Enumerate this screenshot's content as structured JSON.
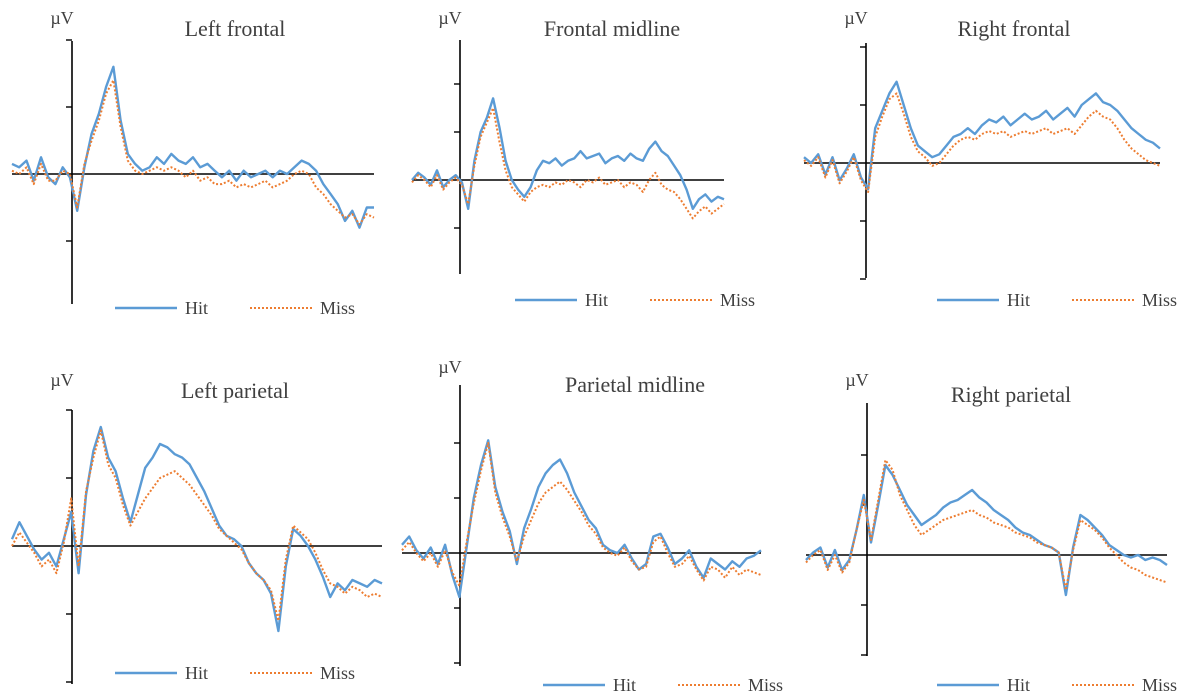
{
  "chart_data": [
    {
      "type": "line",
      "title": "Left frontal",
      "ylabel": "µV",
      "ylim": [
        -4,
        4
      ],
      "series": [
        {
          "name": "Hit",
          "color": "#5b9bd5",
          "style": "solid",
          "values": [
            0.3,
            0.2,
            0.4,
            -0.2,
            0.5,
            -0.1,
            -0.3,
            0.2,
            -0.1,
            -1.1,
            0.2,
            1.2,
            1.8,
            2.6,
            3.2,
            1.6,
            0.6,
            0.3,
            0.1,
            0.2,
            0.5,
            0.3,
            0.6,
            0.4,
            0.3,
            0.5,
            0.2,
            0.3,
            0.1,
            -0.1,
            0.1,
            -0.2,
            0.1,
            -0.1,
            0.0,
            0.1,
            -0.1,
            0.1,
            0.0,
            0.2,
            0.4,
            0.3,
            0.1,
            -0.3,
            -0.6,
            -0.9,
            -1.4,
            -1.1,
            -1.6,
            -1.0,
            -1.0
          ]
        },
        {
          "name": "Miss",
          "color": "#ed7d31",
          "style": "dotted",
          "values": [
            0.1,
            0.0,
            0.2,
            -0.3,
            0.3,
            -0.2,
            -0.2,
            0.1,
            0.0,
            -1.0,
            0.3,
            1.0,
            1.6,
            2.4,
            2.8,
            1.4,
            0.4,
            0.1,
            0.0,
            0.1,
            0.2,
            0.1,
            0.2,
            0.1,
            -0.1,
            0.1,
            -0.2,
            -0.1,
            -0.3,
            -0.3,
            -0.2,
            -0.4,
            -0.3,
            -0.4,
            -0.3,
            -0.2,
            -0.4,
            -0.3,
            -0.2,
            0.0,
            0.1,
            0.0,
            -0.4,
            -0.6,
            -0.9,
            -1.1,
            -1.3,
            -1.2,
            -1.5,
            -1.2,
            -1.3
          ]
        }
      ]
    },
    {
      "type": "line",
      "title": "Frontal midline",
      "ylabel": "µV",
      "ylim": [
        -4,
        4
      ],
      "series": [
        {
          "name": "Hit",
          "color": "#5b9bd5",
          "style": "solid",
          "values": [
            0.0,
            0.3,
            0.1,
            -0.2,
            0.4,
            -0.3,
            0.0,
            0.2,
            -0.1,
            -1.2,
            0.8,
            2.0,
            2.6,
            3.4,
            2.2,
            0.8,
            0.0,
            -0.4,
            -0.7,
            -0.3,
            0.4,
            0.8,
            0.7,
            0.9,
            0.6,
            0.8,
            0.9,
            1.2,
            0.9,
            1.0,
            1.1,
            0.7,
            0.9,
            1.0,
            0.8,
            1.1,
            0.9,
            0.8,
            1.3,
            1.6,
            1.2,
            1.0,
            0.6,
            0.2,
            -0.4,
            -1.2,
            -0.8,
            -0.6,
            -0.9,
            -0.7,
            -0.8
          ]
        },
        {
          "name": "Miss",
          "color": "#ed7d31",
          "style": "dotted",
          "values": [
            -0.1,
            0.2,
            0.0,
            -0.3,
            0.2,
            -0.4,
            -0.1,
            0.1,
            -0.2,
            -1.0,
            0.6,
            1.8,
            2.4,
            3.0,
            1.6,
            0.4,
            -0.3,
            -0.6,
            -0.9,
            -0.5,
            -0.3,
            -0.2,
            -0.3,
            -0.1,
            -0.2,
            0.0,
            -0.1,
            -0.3,
            0.0,
            -0.1,
            0.1,
            -0.2,
            -0.1,
            0.0,
            -0.3,
            -0.1,
            -0.2,
            -0.5,
            0.0,
            0.3,
            -0.2,
            -0.4,
            -0.5,
            -0.8,
            -1.2,
            -1.6,
            -1.3,
            -1.1,
            -1.4,
            -1.2,
            -1.0
          ]
        }
      ]
    },
    {
      "type": "line",
      "title": "Right frontal",
      "ylabel": "µV",
      "ylim": [
        -4,
        4
      ],
      "series": [
        {
          "name": "Hit",
          "color": "#5b9bd5",
          "style": "solid",
          "values": [
            0.2,
            0.0,
            0.3,
            -0.4,
            0.2,
            -0.6,
            -0.2,
            0.3,
            -0.5,
            -0.9,
            1.2,
            1.8,
            2.4,
            2.8,
            2.0,
            1.2,
            0.6,
            0.4,
            0.2,
            0.3,
            0.6,
            0.9,
            1.0,
            1.2,
            1.0,
            1.3,
            1.5,
            1.4,
            1.6,
            1.3,
            1.5,
            1.7,
            1.5,
            1.6,
            1.8,
            1.5,
            1.7,
            1.9,
            1.6,
            2.0,
            2.2,
            2.4,
            2.1,
            2.0,
            1.8,
            1.5,
            1.2,
            1.0,
            0.8,
            0.7,
            0.5
          ]
        },
        {
          "name": "Miss",
          "color": "#ed7d31",
          "style": "dotted",
          "values": [
            0.1,
            -0.1,
            0.2,
            -0.5,
            0.1,
            -0.7,
            -0.3,
            0.2,
            -0.6,
            -1.0,
            0.9,
            1.6,
            2.2,
            2.4,
            1.7,
            0.9,
            0.4,
            0.2,
            -0.1,
            0.0,
            0.3,
            0.6,
            0.8,
            0.9,
            0.8,
            1.0,
            1.1,
            1.0,
            1.1,
            0.9,
            1.0,
            1.1,
            1.0,
            1.1,
            1.2,
            1.0,
            1.1,
            1.2,
            1.0,
            1.3,
            1.6,
            1.8,
            1.6,
            1.5,
            1.2,
            0.8,
            0.5,
            0.3,
            0.1,
            0.0,
            -0.1
          ]
        }
      ]
    },
    {
      "type": "line",
      "title": "Left parietal",
      "ylabel": "µV",
      "ylim": [
        -4,
        4
      ],
      "series": [
        {
          "name": "Hit",
          "color": "#5b9bd5",
          "style": "solid",
          "values": [
            0.2,
            0.7,
            0.3,
            -0.1,
            -0.4,
            -0.2,
            -0.6,
            0.2,
            1.0,
            -0.8,
            1.5,
            2.8,
            3.5,
            2.6,
            2.2,
            1.4,
            0.7,
            1.5,
            2.3,
            2.6,
            3.0,
            2.9,
            2.7,
            2.6,
            2.4,
            2.0,
            1.6,
            1.1,
            0.6,
            0.3,
            0.2,
            0.0,
            -0.5,
            -0.8,
            -1.0,
            -1.4,
            -2.5,
            -0.6,
            0.5,
            0.3,
            0.0,
            -0.4,
            -0.9,
            -1.5,
            -1.1,
            -1.3,
            -1.0,
            -1.1,
            -1.2,
            -1.0,
            -1.1
          ]
        },
        {
          "name": "Miss",
          "color": "#ed7d31",
          "style": "dotted",
          "values": [
            0.0,
            0.4,
            0.1,
            -0.2,
            -0.6,
            -0.4,
            -0.8,
            0.1,
            1.4,
            -0.6,
            1.6,
            2.6,
            3.4,
            2.4,
            2.0,
            1.2,
            0.6,
            1.0,
            1.4,
            1.7,
            2.0,
            2.1,
            2.2,
            2.0,
            1.8,
            1.5,
            1.2,
            0.9,
            0.5,
            0.3,
            0.1,
            -0.1,
            -0.5,
            -0.8,
            -1.0,
            -1.3,
            -2.2,
            -0.4,
            0.6,
            0.4,
            0.2,
            -0.2,
            -0.7,
            -1.1,
            -1.2,
            -1.4,
            -1.2,
            -1.3,
            -1.5,
            -1.4,
            -1.5
          ]
        }
      ]
    },
    {
      "type": "line",
      "title": "Parietal midline",
      "ylabel": "µV",
      "ylim": [
        -4,
        4
      ],
      "series": [
        {
          "name": "Hit",
          "color": "#5b9bd5",
          "style": "solid",
          "values": [
            0.3,
            0.6,
            0.1,
            -0.2,
            0.2,
            -0.4,
            0.3,
            -0.8,
            -1.6,
            0.2,
            2.0,
            3.2,
            4.1,
            2.4,
            1.5,
            0.8,
            -0.4,
            0.9,
            1.6,
            2.4,
            2.9,
            3.2,
            3.4,
            2.9,
            2.2,
            1.7,
            1.2,
            0.9,
            0.3,
            0.1,
            0.0,
            0.3,
            -0.2,
            -0.6,
            -0.4,
            0.6,
            0.7,
            0.2,
            -0.4,
            -0.2,
            0.1,
            -0.5,
            -0.9,
            -0.2,
            -0.4,
            -0.6,
            -0.3,
            -0.5,
            -0.2,
            -0.1,
            0.1
          ]
        },
        {
          "name": "Miss",
          "color": "#ed7d31",
          "style": "dotted",
          "values": [
            0.1,
            0.4,
            0.0,
            -0.3,
            0.0,
            -0.5,
            0.1,
            -0.7,
            -1.2,
            0.4,
            1.8,
            3.0,
            4.0,
            2.2,
            1.3,
            0.6,
            -0.3,
            0.6,
            1.2,
            1.8,
            2.2,
            2.4,
            2.6,
            2.3,
            1.9,
            1.5,
            1.0,
            0.7,
            0.2,
            0.0,
            -0.1,
            0.2,
            -0.3,
            -0.6,
            -0.5,
            0.4,
            0.6,
            0.0,
            -0.5,
            -0.4,
            -0.1,
            -0.6,
            -1.0,
            -0.5,
            -0.6,
            -0.9,
            -0.5,
            -0.8,
            -0.6,
            -0.7,
            -0.8
          ]
        }
      ]
    },
    {
      "type": "line",
      "title": "Right parietal",
      "ylabel": "µV",
      "ylim": [
        -4,
        4
      ],
      "series": [
        {
          "name": "Hit",
          "color": "#5b9bd5",
          "style": "solid",
          "values": [
            -0.2,
            0.1,
            0.3,
            -0.5,
            0.2,
            -0.6,
            -0.2,
            1.0,
            2.4,
            0.5,
            2.0,
            3.6,
            3.2,
            2.6,
            2.0,
            1.6,
            1.2,
            1.4,
            1.6,
            1.9,
            2.1,
            2.2,
            2.4,
            2.6,
            2.3,
            2.1,
            1.8,
            1.6,
            1.4,
            1.1,
            0.9,
            0.8,
            0.6,
            0.4,
            0.3,
            0.1,
            -1.6,
            0.3,
            1.6,
            1.4,
            1.1,
            0.8,
            0.4,
            0.2,
            0.0,
            -0.1,
            0.0,
            -0.2,
            -0.1,
            -0.2,
            -0.4
          ]
        },
        {
          "name": "Miss",
          "color": "#ed7d31",
          "style": "dotted",
          "values": [
            -0.3,
            0.0,
            0.2,
            -0.6,
            0.0,
            -0.7,
            -0.3,
            1.0,
            2.2,
            0.6,
            2.2,
            3.8,
            3.4,
            2.4,
            1.8,
            1.2,
            0.8,
            1.0,
            1.2,
            1.4,
            1.5,
            1.6,
            1.7,
            1.8,
            1.6,
            1.5,
            1.3,
            1.2,
            1.1,
            0.9,
            0.8,
            0.7,
            0.5,
            0.4,
            0.3,
            0.1,
            -1.4,
            0.2,
            1.4,
            1.2,
            1.0,
            0.7,
            0.3,
            0.0,
            -0.3,
            -0.5,
            -0.6,
            -0.8,
            -0.9,
            -1.0,
            -1.1
          ]
        }
      ]
    }
  ]
}
